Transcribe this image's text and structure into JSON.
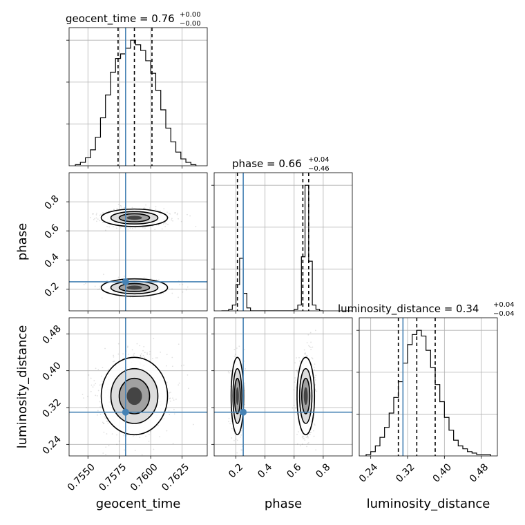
{
  "chart_data": {
    "type": "corner",
    "parameters": [
      "geocent_time",
      "phase",
      "luminosity_distance"
    ],
    "truths": {
      "geocent_time": 0.758,
      "phase": 0.25,
      "luminosity_distance": 0.31
    },
    "titles": {
      "geocent_time": {
        "text": "geocent_time = 0.76",
        "upper": "+0.00",
        "lower": "−0.00"
      },
      "phase": {
        "text": "phase = 0.66",
        "upper": "+0.04",
        "lower": "−0.46"
      },
      "luminosity_distance": {
        "text": "luminosity_distance = 0.34",
        "upper": "+0.04",
        "lower": "−0.04"
      }
    },
    "axes": {
      "geocent_time": {
        "range": [
          0.7535,
          0.7645
        ],
        "ticks": [
          0.755,
          0.7575,
          0.76,
          0.7625
        ],
        "tick_labels": [
          "0.7550",
          "0.7575",
          "0.7600",
          "0.7625"
        ],
        "label": "geocent_time"
      },
      "phase": {
        "range": [
          0.05,
          1.0
        ],
        "ticks": [
          0.2,
          0.4,
          0.6,
          0.8
        ],
        "tick_labels": [
          "0.2",
          "0.4",
          "0.6",
          "0.8"
        ],
        "label": "phase"
      },
      "luminosity_distance": {
        "range": [
          0.215,
          0.515
        ],
        "ticks": [
          0.24,
          0.32,
          0.4,
          0.48
        ],
        "tick_labels": [
          "0.24",
          "0.32",
          "0.40",
          "0.48"
        ],
        "label": "luminosity_distance"
      }
    },
    "quantiles": {
      "geocent_time": [
        0.7574,
        0.7587,
        0.7601
      ],
      "phase": [
        0.21,
        0.66,
        0.7
      ],
      "luminosity_distance": [
        0.3,
        0.34,
        0.38
      ]
    },
    "histograms": {
      "geocent_time": {
        "edges": [
          0.754,
          0.7544,
          0.7548,
          0.7552,
          0.7556,
          0.756,
          0.7564,
          0.7568,
          0.7572,
          0.7576,
          0.758,
          0.7584,
          0.7588,
          0.7592,
          0.7596,
          0.76,
          0.7604,
          0.7608,
          0.7612,
          0.7616,
          0.762,
          0.7624,
          0.7628,
          0.7632,
          0.7636
        ],
        "counts": [
          1,
          3,
          7,
          14,
          25,
          42,
          62,
          82,
          94,
          98,
          103,
          110,
          106,
          101,
          92,
          81,
          66,
          49,
          33,
          21,
          12,
          6,
          3,
          1
        ]
      },
      "phase": {
        "edges": [
          0.1,
          0.125,
          0.15,
          0.175,
          0.2,
          0.225,
          0.25,
          0.275,
          0.3,
          0.325,
          0.35,
          0.375,
          0.4,
          0.425,
          0.45,
          0.475,
          0.5,
          0.525,
          0.55,
          0.575,
          0.6,
          0.625,
          0.65,
          0.675,
          0.7,
          0.725,
          0.75,
          0.775,
          0.8
        ],
        "counts": [
          0,
          0,
          1,
          4,
          18,
          36,
          12,
          2,
          0,
          0,
          0,
          0,
          0,
          0,
          0,
          0,
          0,
          0,
          0,
          0,
          1,
          4,
          37,
          86,
          34,
          4,
          1,
          0
        ]
      },
      "luminosity_distance": {
        "edges": [
          0.23,
          0.24,
          0.25,
          0.26,
          0.27,
          0.28,
          0.29,
          0.3,
          0.31,
          0.32,
          0.33,
          0.34,
          0.35,
          0.36,
          0.37,
          0.38,
          0.39,
          0.4,
          0.41,
          0.42,
          0.43,
          0.44,
          0.45,
          0.46,
          0.47,
          0.48,
          0.49,
          0.5
        ],
        "counts": [
          1,
          3,
          7,
          13,
          20,
          30,
          41,
          52,
          65,
          78,
          85,
          88,
          84,
          74,
          62,
          50,
          38,
          27,
          18,
          11,
          7,
          5,
          3,
          2,
          1,
          1,
          1
        ]
      }
    },
    "density_modes": {
      "phase_vs_geocent_time": [
        {
          "x": 0.7587,
          "y": 0.69,
          "sx": 0.0011,
          "sy": 0.025,
          "weight": 0.68
        },
        {
          "x": 0.7587,
          "y": 0.21,
          "sx": 0.0011,
          "sy": 0.025,
          "weight": 0.32
        }
      ],
      "luminosity_distance_vs_geocent_time": [
        {
          "x": 0.7587,
          "y": 0.345,
          "sx": 0.0011,
          "sy": 0.035,
          "weight": 1.0
        }
      ],
      "luminosity_distance_vs_phase": [
        {
          "x": 0.21,
          "y": 0.345,
          "sx": 0.018,
          "sy": 0.035,
          "weight": 0.32
        },
        {
          "x": 0.68,
          "y": 0.345,
          "sx": 0.025,
          "sy": 0.035,
          "weight": 0.68
        }
      ]
    },
    "grid": true
  }
}
